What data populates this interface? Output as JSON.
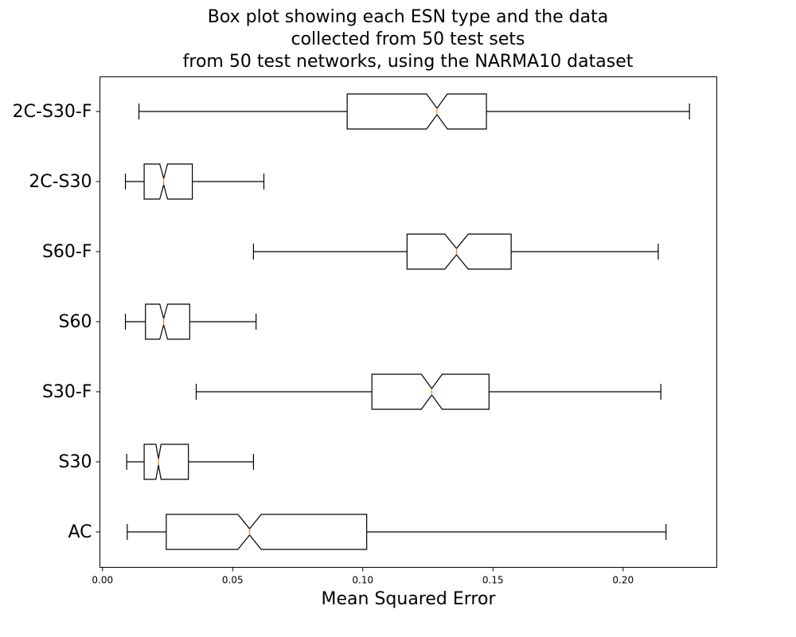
{
  "chart_data": {
    "type": "box",
    "orientation": "horizontal",
    "notched": true,
    "title": "Box plot showing each ESN type and the data collected from 50 test sets from 50 test networks, using the NARMA10 dataset",
    "title_lines": [
      "Box plot showing each ESN type and the data",
      "collected from 50 test sets",
      "from 50 test networks, using the NARMA10 dataset"
    ],
    "xlabel": "Mean Squared Error",
    "ylabel": "",
    "xlim": [
      -0.001,
      0.236
    ],
    "x_ticks": [
      0.0,
      0.05,
      0.1,
      0.15,
      0.2
    ],
    "x_tick_labels": [
      "0.00",
      "0.05",
      "0.10",
      "0.15",
      "0.20"
    ],
    "grid": false,
    "box_edge_color": "#000000",
    "median_color": "#ff7f0e",
    "categories": [
      "AC",
      "S30",
      "S30-F",
      "S60",
      "S60-F",
      "2C-S30",
      "2C-S30-F"
    ],
    "boxes": [
      {
        "label": "AC",
        "whisker_low": 0.0095,
        "q1": 0.0245,
        "median": 0.0565,
        "q3": 0.1015,
        "whisker_high": 0.2165,
        "notch_low": 0.052,
        "notch_high": 0.061
      },
      {
        "label": "S30",
        "whisker_low": 0.0093,
        "q1": 0.016,
        "median": 0.0215,
        "q3": 0.033,
        "whisker_high": 0.058,
        "notch_low": 0.0205,
        "notch_high": 0.0225
      },
      {
        "label": "S30-F",
        "whisker_low": 0.036,
        "q1": 0.1035,
        "median": 0.1265,
        "q3": 0.1485,
        "whisker_high": 0.2145,
        "notch_low": 0.1225,
        "notch_high": 0.1305
      },
      {
        "label": "S60",
        "whisker_low": 0.0088,
        "q1": 0.0165,
        "median": 0.0235,
        "q3": 0.0335,
        "whisker_high": 0.059,
        "notch_low": 0.022,
        "notch_high": 0.025
      },
      {
        "label": "S60-F",
        "whisker_low": 0.058,
        "q1": 0.117,
        "median": 0.136,
        "q3": 0.157,
        "whisker_high": 0.2135,
        "notch_low": 0.1315,
        "notch_high": 0.1405
      },
      {
        "label": "2C-S30",
        "whisker_low": 0.0088,
        "q1": 0.016,
        "median": 0.0235,
        "q3": 0.0345,
        "whisker_high": 0.062,
        "notch_low": 0.022,
        "notch_high": 0.025
      },
      {
        "label": "2C-S30-F",
        "whisker_low": 0.014,
        "q1": 0.094,
        "median": 0.1285,
        "q3": 0.1475,
        "whisker_high": 0.2255,
        "notch_low": 0.1245,
        "notch_high": 0.1325
      }
    ]
  }
}
